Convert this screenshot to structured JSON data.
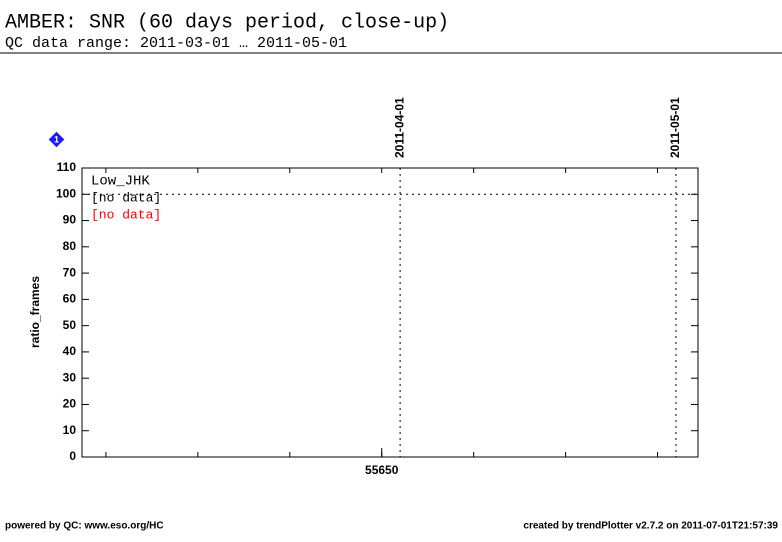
{
  "chart_data": {
    "type": "line",
    "title": "AMBER: SNR (60 days period, close-up)",
    "subtitle": "QC data range: 2011-03-01 … 2011-05-01",
    "ylabel": "ratio_frames",
    "ylim": [
      0,
      110
    ],
    "yticks": [
      0,
      10,
      20,
      30,
      40,
      50,
      60,
      70,
      80,
      90,
      100,
      110
    ],
    "xlim": [
      55617.4,
      55684.4
    ],
    "xticks": [
      55650
    ],
    "xminor": [
      55620,
      55630,
      55640,
      55650,
      55660,
      55670,
      55680
    ],
    "reference_line": 100,
    "date_markers": [
      {
        "value": 55652,
        "label": "2011-04-01"
      },
      {
        "value": 55682,
        "label": "2011-05-01"
      }
    ],
    "legend_title": "Low_JHK",
    "series": [
      {
        "name": "[no data]",
        "color": "#000000",
        "values": []
      },
      {
        "name": "[no data]",
        "color": "#ff0000",
        "values": []
      }
    ],
    "badge": "1",
    "footer_left": "powered by QC: www.eso.org/HC",
    "footer_right": "created by trendPlotter v2.7.2 on 2011-07-01T21:57:39"
  }
}
